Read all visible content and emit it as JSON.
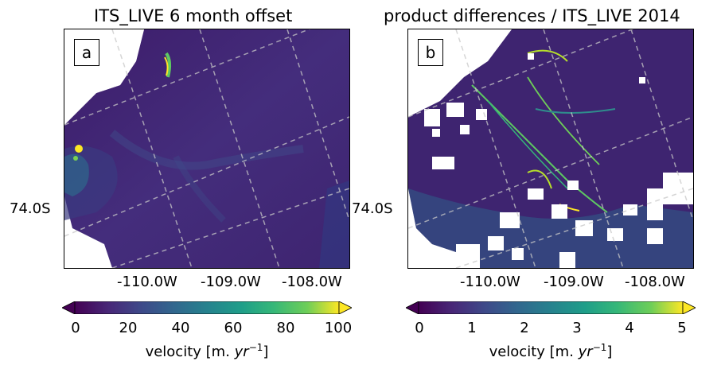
{
  "panels": [
    {
      "title": "ITS_LIVE 6 month offset",
      "label": "a",
      "y_tick": "74.0S",
      "x_ticks": [
        "-110.0W",
        "-109.0W",
        "-108.0W"
      ],
      "colorbar": {
        "ticks": [
          "0",
          "20",
          "40",
          "60",
          "80",
          "100"
        ],
        "label_prefix": "velocity [m. ",
        "label_unit": "yr",
        "label_exp": "−1",
        "label_suffix": "]",
        "min": 0,
        "max": 100,
        "extend": "both",
        "colormap": "viridis"
      }
    },
    {
      "title": "product differences / ITS_LIVE 2014",
      "label": "b",
      "y_tick": "74.0S",
      "x_ticks": [
        "-110.0W",
        "-109.0W",
        "-108.0W"
      ],
      "colorbar": {
        "ticks": [
          "0",
          "1",
          "2",
          "3",
          "4",
          "5"
        ],
        "label_prefix": "velocity [m. ",
        "label_unit": "yr",
        "label_exp": "−1",
        "label_suffix": "]",
        "min": 0,
        "max": 5,
        "extend": "both",
        "colormap": "viridis"
      }
    }
  ],
  "colors": {
    "background": "#440154",
    "low": "#3b2f7a",
    "mid": "#21918c",
    "high": "#fde725",
    "gridline": "#c8c8c8"
  }
}
